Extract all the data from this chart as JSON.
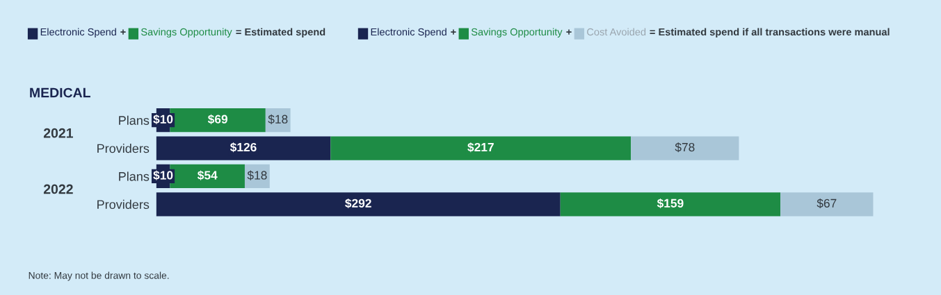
{
  "chart_data": {
    "type": "bar",
    "orientation": "horizontal",
    "stacked": true,
    "title": "MEDICAL",
    "categories": [
      "Plans",
      "Providers",
      "Plans",
      "Providers"
    ],
    "series": [
      {
        "name": "Electronic Spend",
        "color": "#1a2550",
        "values": [
          10,
          126,
          10,
          292
        ],
        "value_labels": [
          "$10",
          "$126",
          "$10",
          "$292"
        ]
      },
      {
        "name": "Savings Opportunity",
        "color": "#1e8c45",
        "values": [
          69,
          217,
          54,
          159
        ],
        "value_labels": [
          "$69",
          "$217",
          "$54",
          "$159"
        ]
      },
      {
        "name": "Cost Avoided",
        "color": "#a9c6d8",
        "values": [
          18,
          78,
          18,
          67
        ],
        "value_labels": [
          "$18",
          "$78",
          "$18",
          "$67"
        ]
      }
    ],
    "tick_labels": "y",
    "legend": "top",
    "grid": false,
    "annotations": [
      "+",
      "=",
      "Estimated spend",
      "Estimated spend if all transactions were manual",
      "2021",
      "2022",
      "Note: May not be drawn to scale."
    ]
  }
}
